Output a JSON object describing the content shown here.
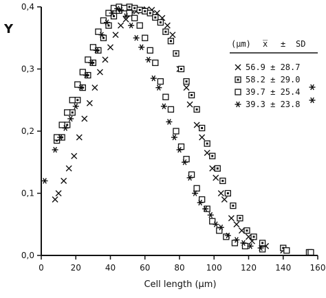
{
  "chart_data": {
    "type": "scatter",
    "ylabel": "Y",
    "xlabel": "Cell length (μm)",
    "xlim": [
      0,
      160
    ],
    "ylim": [
      0,
      0.4
    ],
    "x_ticks": [
      "0",
      "20",
      "40",
      "60",
      "80",
      "100",
      "120",
      "140",
      "160"
    ],
    "x_tick_values": [
      0,
      20,
      40,
      60,
      80,
      100,
      120,
      140,
      160
    ],
    "y_ticks": [
      "0,0",
      "0,1",
      "0,2",
      "0,3",
      "0,4"
    ],
    "y_tick_values": [
      0,
      0.1,
      0.2,
      0.3,
      0.4
    ],
    "legend": {
      "header": {
        "unit": "(μm)",
        "mean": "x̅",
        "pm": "±",
        "sd": "SD"
      },
      "placement": "top-right"
    },
    "series": [
      {
        "label": "56.9 ± 28.7",
        "marker": "x",
        "points": [
          [
            8,
            0.09
          ],
          [
            10,
            0.1
          ],
          [
            13,
            0.12
          ],
          [
            16,
            0.14
          ],
          [
            19,
            0.16
          ],
          [
            22,
            0.19
          ],
          [
            25,
            0.22
          ],
          [
            28,
            0.245
          ],
          [
            31,
            0.27
          ],
          [
            34,
            0.295
          ],
          [
            37,
            0.315
          ],
          [
            40,
            0.335
          ],
          [
            43,
            0.355
          ],
          [
            46,
            0.37
          ],
          [
            49,
            0.38
          ],
          [
            52,
            0.388
          ],
          [
            55,
            0.393
          ],
          [
            58,
            0.395
          ],
          [
            61,
            0.396
          ],
          [
            64,
            0.395
          ],
          [
            67,
            0.39
          ],
          [
            70,
            0.382
          ],
          [
            73,
            0.37
          ],
          [
            76,
            0.355
          ],
          [
            80,
            0.3
          ],
          [
            84,
            0.27
          ],
          [
            86,
            0.243
          ],
          [
            90,
            0.21
          ],
          [
            93,
            0.19
          ],
          [
            96,
            0.165
          ],
          [
            99,
            0.14
          ],
          [
            101,
            0.125
          ],
          [
            104,
            0.1
          ],
          [
            106,
            0.09
          ],
          [
            110,
            0.06
          ],
          [
            113,
            0.05
          ],
          [
            116,
            0.04
          ],
          [
            120,
            0.03
          ],
          [
            122,
            0.023
          ],
          [
            130,
            0.015
          ],
          [
            140,
            0.008
          ]
        ]
      },
      {
        "label": "58.2 ± 29.0",
        "marker": "boxdot",
        "points": [
          [
            9,
            0.185
          ],
          [
            12,
            0.19
          ],
          [
            15,
            0.21
          ],
          [
            18,
            0.23
          ],
          [
            21,
            0.25
          ],
          [
            24,
            0.27
          ],
          [
            27,
            0.29
          ],
          [
            30,
            0.31
          ],
          [
            33,
            0.33
          ],
          [
            36,
            0.35
          ],
          [
            39,
            0.37
          ],
          [
            42,
            0.385
          ],
          [
            45,
            0.394
          ],
          [
            48,
            0.398
          ],
          [
            51,
            0.4
          ],
          [
            54,
            0.398
          ],
          [
            57,
            0.395
          ],
          [
            60,
            0.393
          ],
          [
            63,
            0.39
          ],
          [
            66,
            0.383
          ],
          [
            69,
            0.375
          ],
          [
            72,
            0.36
          ],
          [
            75,
            0.345
          ],
          [
            78,
            0.325
          ],
          [
            81,
            0.3
          ],
          [
            84,
            0.28
          ],
          [
            87,
            0.258
          ],
          [
            90,
            0.235
          ],
          [
            93,
            0.205
          ],
          [
            96,
            0.18
          ],
          [
            99,
            0.16
          ],
          [
            102,
            0.14
          ],
          [
            105,
            0.12
          ],
          [
            108,
            0.1
          ],
          [
            111,
            0.08
          ],
          [
            115,
            0.06
          ],
          [
            119,
            0.04
          ],
          [
            123,
            0.03
          ],
          [
            128,
            0.02
          ],
          [
            140,
            0.012
          ],
          [
            155,
            0.005
          ]
        ]
      },
      {
        "label": "39.7 ± 25.4",
        "marker": "square",
        "points": [
          [
            9,
            0.19
          ],
          [
            12,
            0.21
          ],
          [
            15,
            0.23
          ],
          [
            18,
            0.25
          ],
          [
            21,
            0.275
          ],
          [
            24,
            0.295
          ],
          [
            27,
            0.315
          ],
          [
            30,
            0.335
          ],
          [
            33,
            0.36
          ],
          [
            36,
            0.378
          ],
          [
            39,
            0.39
          ],
          [
            42,
            0.398
          ],
          [
            45,
            0.4
          ],
          [
            48,
            0.398
          ],
          [
            51,
            0.39
          ],
          [
            54,
            0.382
          ],
          [
            57,
            0.37
          ],
          [
            60,
            0.35
          ],
          [
            63,
            0.33
          ],
          [
            66,
            0.31
          ],
          [
            69,
            0.28
          ],
          [
            72,
            0.255
          ],
          [
            75,
            0.235
          ],
          [
            78,
            0.2
          ],
          [
            81,
            0.175
          ],
          [
            84,
            0.155
          ],
          [
            87,
            0.13
          ],
          [
            90,
            0.108
          ],
          [
            93,
            0.09
          ],
          [
            96,
            0.075
          ],
          [
            99,
            0.055
          ],
          [
            103,
            0.04
          ],
          [
            107,
            0.03
          ],
          [
            112,
            0.02
          ],
          [
            118,
            0.015
          ],
          [
            128,
            0.01
          ],
          [
            142,
            0.008
          ],
          [
            156,
            0.005
          ]
        ]
      },
      {
        "label": "39.3 ± 23.8",
        "marker": "asterisk",
        "points": [
          [
            2,
            0.12
          ],
          [
            8,
            0.17
          ],
          [
            11,
            0.19
          ],
          [
            14,
            0.205
          ],
          [
            17,
            0.22
          ],
          [
            20,
            0.24
          ],
          [
            23,
            0.27
          ],
          [
            26,
            0.29
          ],
          [
            29,
            0.31
          ],
          [
            32,
            0.33
          ],
          [
            35,
            0.355
          ],
          [
            38,
            0.375
          ],
          [
            41,
            0.39
          ],
          [
            44,
            0.397
          ],
          [
            46,
            0.395
          ],
          [
            49,
            0.385
          ],
          [
            52,
            0.37
          ],
          [
            55,
            0.35
          ],
          [
            58,
            0.335
          ],
          [
            62,
            0.315
          ],
          [
            65,
            0.285
          ],
          [
            68,
            0.27
          ],
          [
            71,
            0.24
          ],
          [
            74,
            0.215
          ],
          [
            77,
            0.19
          ],
          [
            80,
            0.17
          ],
          [
            83,
            0.15
          ],
          [
            86,
            0.125
          ],
          [
            89,
            0.1
          ],
          [
            92,
            0.085
          ],
          [
            95,
            0.075
          ],
          [
            98,
            0.065
          ],
          [
            101,
            0.05
          ],
          [
            104,
            0.045
          ],
          [
            108,
            0.032
          ],
          [
            113,
            0.025
          ],
          [
            117,
            0.02
          ],
          [
            121,
            0.015
          ],
          [
            127,
            0.012
          ]
        ]
      }
    ]
  }
}
